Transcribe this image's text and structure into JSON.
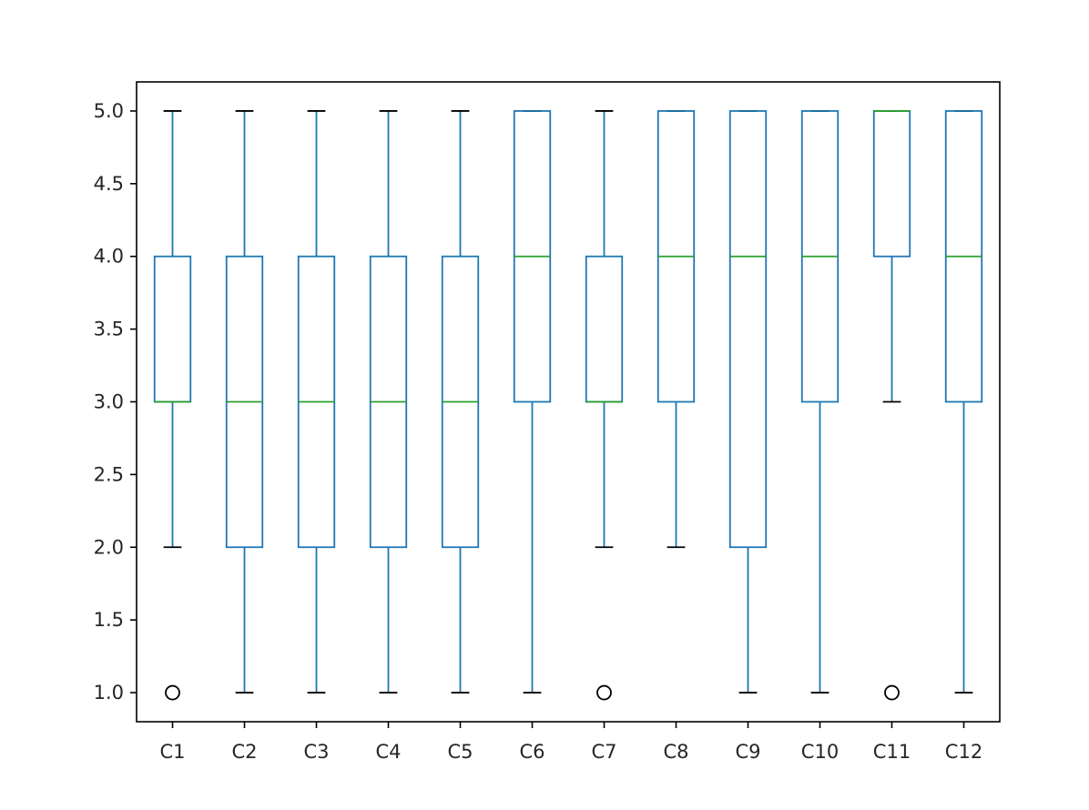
{
  "chart_data": {
    "type": "box",
    "title": "",
    "xlabel": "",
    "ylabel": "",
    "ylim": [
      0.8,
      5.2
    ],
    "yticks": [
      1.0,
      1.5,
      2.0,
      2.5,
      3.0,
      3.5,
      4.0,
      4.5,
      5.0
    ],
    "ytick_labels": [
      "1.0",
      "1.5",
      "2.0",
      "2.5",
      "3.0",
      "3.5",
      "4.0",
      "4.5",
      "5.0"
    ],
    "grid": false,
    "categories": [
      "C1",
      "C2",
      "C3",
      "C4",
      "C5",
      "C6",
      "C7",
      "C8",
      "C9",
      "C10",
      "C11",
      "C12"
    ],
    "boxes": [
      {
        "label": "C1",
        "whisker_low": 2,
        "q1": 3,
        "median": 3,
        "q3": 4,
        "whisker_high": 5,
        "outliers": [
          1
        ]
      },
      {
        "label": "C2",
        "whisker_low": 1,
        "q1": 2,
        "median": 3,
        "q3": 4,
        "whisker_high": 5,
        "outliers": []
      },
      {
        "label": "C3",
        "whisker_low": 1,
        "q1": 2,
        "median": 3,
        "q3": 4,
        "whisker_high": 5,
        "outliers": []
      },
      {
        "label": "C4",
        "whisker_low": 1,
        "q1": 2,
        "median": 3,
        "q3": 4,
        "whisker_high": 5,
        "outliers": []
      },
      {
        "label": "C5",
        "whisker_low": 1,
        "q1": 2,
        "median": 3,
        "q3": 4,
        "whisker_high": 5,
        "outliers": []
      },
      {
        "label": "C6",
        "whisker_low": 1,
        "q1": 3,
        "median": 4,
        "q3": 5,
        "whisker_high": 5,
        "outliers": []
      },
      {
        "label": "C7",
        "whisker_low": 2,
        "q1": 3,
        "median": 3,
        "q3": 4,
        "whisker_high": 5,
        "outliers": [
          1
        ]
      },
      {
        "label": "C8",
        "whisker_low": 2,
        "q1": 3,
        "median": 4,
        "q3": 5,
        "whisker_high": 5,
        "outliers": []
      },
      {
        "label": "C9",
        "whisker_low": 1,
        "q1": 2,
        "median": 4,
        "q3": 5,
        "whisker_high": 5,
        "outliers": []
      },
      {
        "label": "C10",
        "whisker_low": 1,
        "q1": 3,
        "median": 4,
        "q3": 5,
        "whisker_high": 5,
        "outliers": []
      },
      {
        "label": "C11",
        "whisker_low": 3,
        "q1": 4,
        "median": 5,
        "q3": 5,
        "whisker_high": 5,
        "outliers": [
          1
        ]
      },
      {
        "label": "C12",
        "whisker_low": 1,
        "q1": 3,
        "median": 4,
        "q3": 5,
        "whisker_high": 5,
        "outliers": []
      }
    ],
    "colors": {
      "box": "#1f77b4",
      "median": "#2ca02c",
      "cap": "#000000",
      "outlier": "#000000",
      "axes": "#000000"
    }
  }
}
